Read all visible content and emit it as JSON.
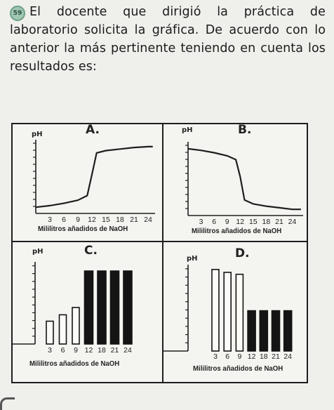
{
  "question": {
    "number": "59",
    "text": "El docente que dirigió la práctica de laboratorio solicita la gráfica. De acuerdo con lo anterior la más pertinente teniendo en cuenta los resultados es:"
  },
  "charts": [
    {
      "label": "A.",
      "ylabel": "pH",
      "xlabel": "Mililitros añadidos de NaOH",
      "ticks": [
        "3",
        "6",
        "9",
        "12",
        "15",
        "18",
        "21",
        "24"
      ]
    },
    {
      "label": "B.",
      "ylabel": "pH",
      "xlabel": "Mililitros añadidos de NaOH",
      "ticks": [
        "3",
        "6",
        "9",
        "12",
        "15",
        "18",
        "21",
        "24"
      ]
    },
    {
      "label": "C.",
      "ylabel": "pH",
      "xlabel": "Mililitros añadidos de NaOH",
      "ticks": [
        "3",
        "6",
        "9",
        "12",
        "18",
        "21",
        "24"
      ]
    },
    {
      "label": "D.",
      "ylabel": "pH",
      "xlabel": "Mililitros añadidos de NaOH",
      "ticks": [
        "3",
        "6",
        "9",
        "12",
        "18",
        "21",
        "24"
      ]
    }
  ],
  "chart_data": [
    {
      "type": "line",
      "title": "A.",
      "ylabel": "pH",
      "xlabel": "Mililitros añadidos de NaOH",
      "x": [
        0,
        3,
        6,
        9,
        11,
        12,
        13,
        15,
        18,
        21,
        24,
        25
      ],
      "y": [
        0.8,
        1.0,
        1.3,
        1.7,
        2.3,
        5.0,
        7.8,
        8.1,
        8.3,
        8.5,
        8.6,
        8.6
      ],
      "color": "#1e1e1e"
    },
    {
      "type": "line",
      "title": "B.",
      "ylabel": "pH",
      "xlabel": "Mililitros añadidos de NaOH",
      "x": [
        0,
        3,
        6,
        9,
        11,
        12,
        13,
        15,
        18,
        21,
        24,
        26
      ],
      "y": [
        8.6,
        8.4,
        8.1,
        7.7,
        7.2,
        5.0,
        2.0,
        1.5,
        1.2,
        1.0,
        0.8,
        0.8
      ],
      "color": "#1e1e1e"
    },
    {
      "type": "bar",
      "title": "C.",
      "ylabel": "pH",
      "xlabel": "Mililitros añadidos de NaOH",
      "categories": [
        "3",
        "6",
        "9",
        "12",
        "18",
        "21",
        "24"
      ],
      "values": [
        2.5,
        3.2,
        4.0,
        8.0,
        8.0,
        8.0,
        8.0
      ],
      "fill": [
        "white",
        "white",
        "white",
        "black",
        "black",
        "black",
        "black"
      ]
    },
    {
      "type": "bar",
      "title": "D.",
      "ylabel": "pH",
      "xlabel": "Mililitros añadidos de NaOH",
      "categories": [
        "3",
        "6",
        "9",
        "12",
        "18",
        "21",
        "24"
      ],
      "values": [
        8.5,
        8.2,
        8.0,
        4.2,
        4.2,
        4.2,
        4.2
      ],
      "fill": [
        "white",
        "white",
        "white",
        "black",
        "black",
        "black",
        "black"
      ]
    }
  ]
}
